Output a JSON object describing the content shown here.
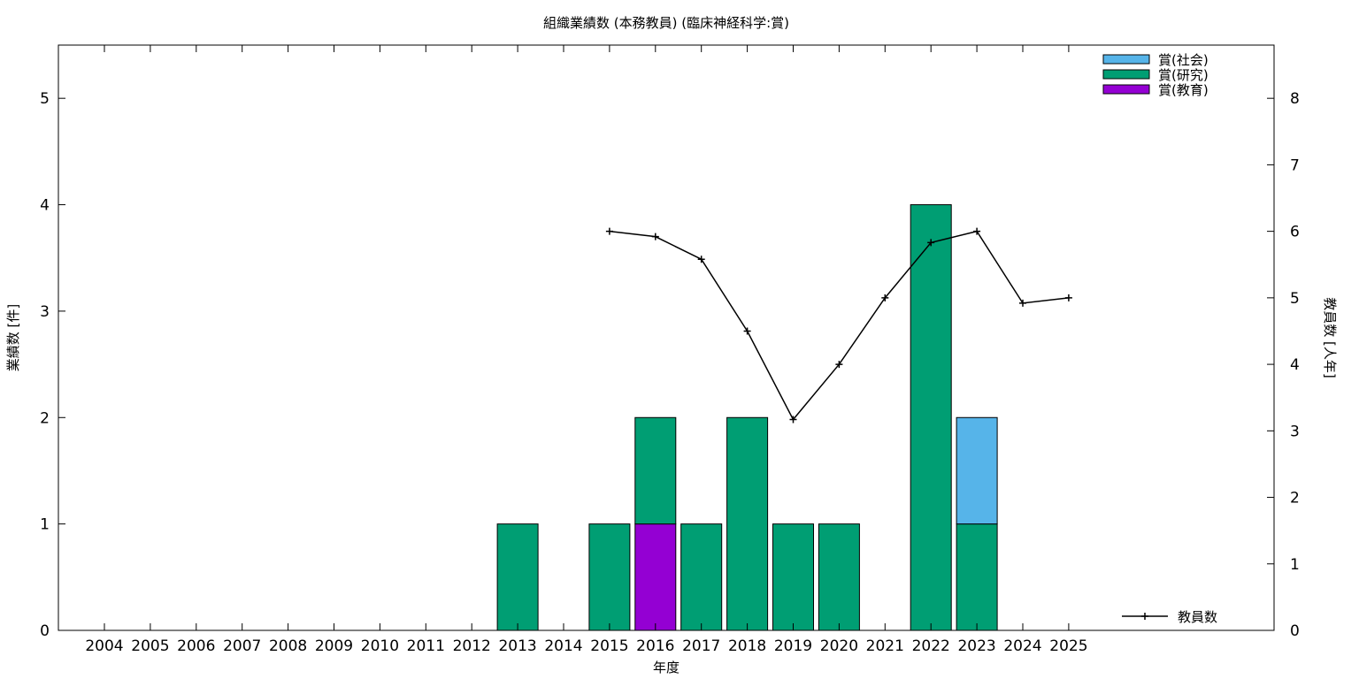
{
  "chart_data": {
    "type": "bar",
    "title": "組織業績数 (本務教員) (臨床神経科学:賞)",
    "xlabel": "年度",
    "ylabel": "業績数 [件]",
    "y2label": "教員数 [人年]",
    "categories": [
      "2004",
      "2005",
      "2006",
      "2007",
      "2008",
      "2009",
      "2010",
      "2011",
      "2012",
      "2013",
      "2014",
      "2015",
      "2016",
      "2017",
      "2018",
      "2019",
      "2020",
      "2021",
      "2022",
      "2023",
      "2024",
      "2025"
    ],
    "ylim": [
      0,
      5.5
    ],
    "yticks": [
      0,
      1,
      2,
      3,
      4,
      5
    ],
    "y2lim": [
      0,
      8.8
    ],
    "y2ticks": [
      0,
      1,
      2,
      3,
      4,
      5,
      6,
      7,
      8
    ],
    "stacked": true,
    "legend_position": "top-right",
    "series": [
      {
        "name": "賞(教育)",
        "color": "#9400d3",
        "values": [
          0,
          0,
          0,
          0,
          0,
          0,
          0,
          0,
          0,
          0,
          0,
          0,
          1,
          0,
          0,
          0,
          0,
          0,
          0,
          0,
          0,
          0
        ]
      },
      {
        "name": "賞(研究)",
        "color": "#009e73",
        "values": [
          0,
          0,
          0,
          0,
          0,
          0,
          0,
          0,
          0,
          1,
          0,
          1,
          1,
          1,
          2,
          1,
          1,
          0,
          4,
          1,
          0,
          0
        ]
      },
      {
        "name": "賞(社会)",
        "color": "#56b4e9",
        "values": [
          0,
          0,
          0,
          0,
          0,
          0,
          0,
          0,
          0,
          0,
          0,
          0,
          0,
          0,
          0,
          0,
          0,
          0,
          0,
          1,
          0,
          0
        ]
      }
    ],
    "legend_order": [
      "賞(社会)",
      "賞(研究)",
      "賞(教育)"
    ],
    "line": {
      "name": "教員数",
      "axis": "y2",
      "color": "#000000",
      "x": [
        "2015",
        "2016",
        "2017",
        "2018",
        "2019",
        "2020",
        "2021",
        "2022",
        "2023",
        "2024",
        "2025"
      ],
      "values": [
        6.0,
        5.92,
        5.58,
        4.5,
        3.17,
        4.0,
        5.0,
        5.83,
        6.0,
        4.92,
        5.0
      ]
    }
  }
}
